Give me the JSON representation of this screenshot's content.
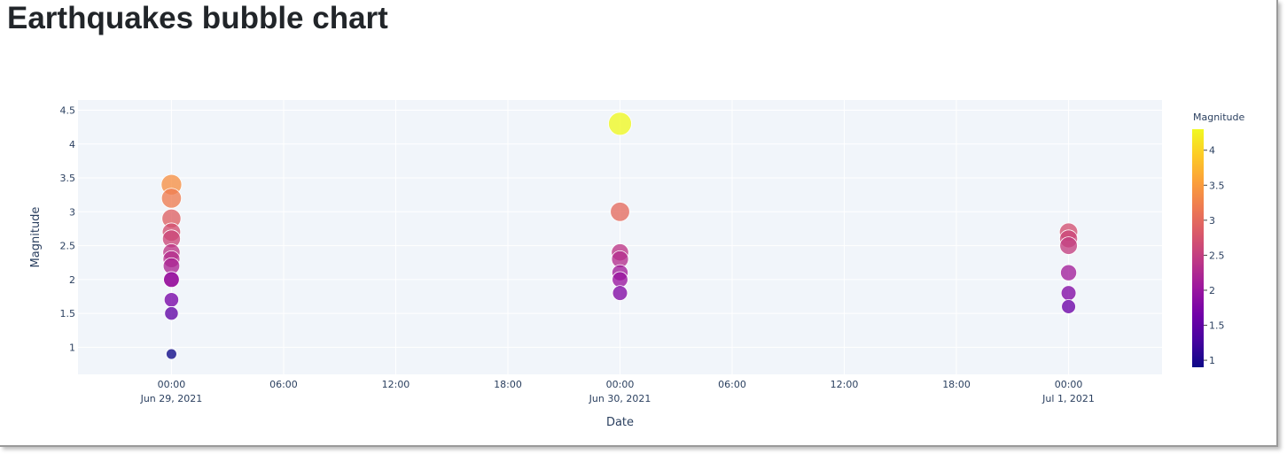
{
  "page": {
    "title": "Earthquakes bubble chart"
  },
  "chart_data": {
    "type": "scatter",
    "title": "Earthquakes bubble chart",
    "xlabel": "Date",
    "ylabel": "Magnitude",
    "xlim": [
      "2021-06-28T19:00",
      "2021-07-01T05:00"
    ],
    "ylim": [
      0.6,
      4.65
    ],
    "grid": true,
    "x_ticks": [
      {
        "value": "2021-06-29T00:00",
        "label": "00:00",
        "sublabel": "Jun 29, 2021"
      },
      {
        "value": "2021-06-29T06:00",
        "label": "06:00",
        "sublabel": ""
      },
      {
        "value": "2021-06-29T12:00",
        "label": "12:00",
        "sublabel": ""
      },
      {
        "value": "2021-06-29T18:00",
        "label": "18:00",
        "sublabel": ""
      },
      {
        "value": "2021-06-30T00:00",
        "label": "00:00",
        "sublabel": "Jun 30, 2021"
      },
      {
        "value": "2021-06-30T06:00",
        "label": "06:00",
        "sublabel": ""
      },
      {
        "value": "2021-06-30T12:00",
        "label": "12:00",
        "sublabel": ""
      },
      {
        "value": "2021-06-30T18:00",
        "label": "18:00",
        "sublabel": ""
      },
      {
        "value": "2021-07-01T00:00",
        "label": "00:00",
        "sublabel": "Jul 1, 2021"
      }
    ],
    "y_ticks": [
      1,
      1.5,
      2,
      2.5,
      3,
      3.5,
      4,
      4.5
    ],
    "y_tick_labels": [
      "1",
      "1.5",
      "2",
      "2.5",
      "3",
      "3.5",
      "4",
      "4.5"
    ],
    "size_by": "Magnitude",
    "color_by": "Magnitude",
    "colorscale": [
      "#0d0887",
      "#46039f",
      "#7201a8",
      "#9c179e",
      "#bd3786",
      "#d8576b",
      "#ed7953",
      "#fb9f3a",
      "#fdca26",
      "#f0f921"
    ],
    "colorbar": {
      "title": "Magnitude",
      "range": [
        0.9,
        4.3
      ],
      "ticks": [
        1,
        1.5,
        2,
        2.5,
        3,
        3.5,
        4
      ],
      "tick_labels": [
        "1",
        "1.5",
        "2",
        "2.5",
        "3",
        "3.5",
        "4"
      ]
    },
    "points": [
      {
        "x": "2021-06-29T00:00",
        "y": 3.4
      },
      {
        "x": "2021-06-29T00:00",
        "y": 3.2
      },
      {
        "x": "2021-06-29T00:00",
        "y": 2.9
      },
      {
        "x": "2021-06-29T00:00",
        "y": 2.7
      },
      {
        "x": "2021-06-29T00:00",
        "y": 2.6
      },
      {
        "x": "2021-06-29T00:00",
        "y": 2.4
      },
      {
        "x": "2021-06-29T00:00",
        "y": 2.3
      },
      {
        "x": "2021-06-29T00:00",
        "y": 2.2
      },
      {
        "x": "2021-06-29T00:00",
        "y": 2.0
      },
      {
        "x": "2021-06-29T00:00",
        "y": 2.0
      },
      {
        "x": "2021-06-29T00:00",
        "y": 1.7
      },
      {
        "x": "2021-06-29T00:00",
        "y": 1.5
      },
      {
        "x": "2021-06-29T00:00",
        "y": 0.9
      },
      {
        "x": "2021-06-30T00:00",
        "y": 4.3
      },
      {
        "x": "2021-06-30T00:00",
        "y": 3.0
      },
      {
        "x": "2021-06-30T00:00",
        "y": 2.4
      },
      {
        "x": "2021-06-30T00:00",
        "y": 2.3
      },
      {
        "x": "2021-06-30T00:00",
        "y": 2.1
      },
      {
        "x": "2021-06-30T00:00",
        "y": 2.0
      },
      {
        "x": "2021-06-30T00:00",
        "y": 1.8
      },
      {
        "x": "2021-07-01T00:00",
        "y": 2.7
      },
      {
        "x": "2021-07-01T00:00",
        "y": 2.6
      },
      {
        "x": "2021-07-01T00:00",
        "y": 2.5
      },
      {
        "x": "2021-07-01T00:00",
        "y": 2.1
      },
      {
        "x": "2021-07-01T00:00",
        "y": 1.8
      },
      {
        "x": "2021-07-01T00:00",
        "y": 1.6
      }
    ]
  }
}
